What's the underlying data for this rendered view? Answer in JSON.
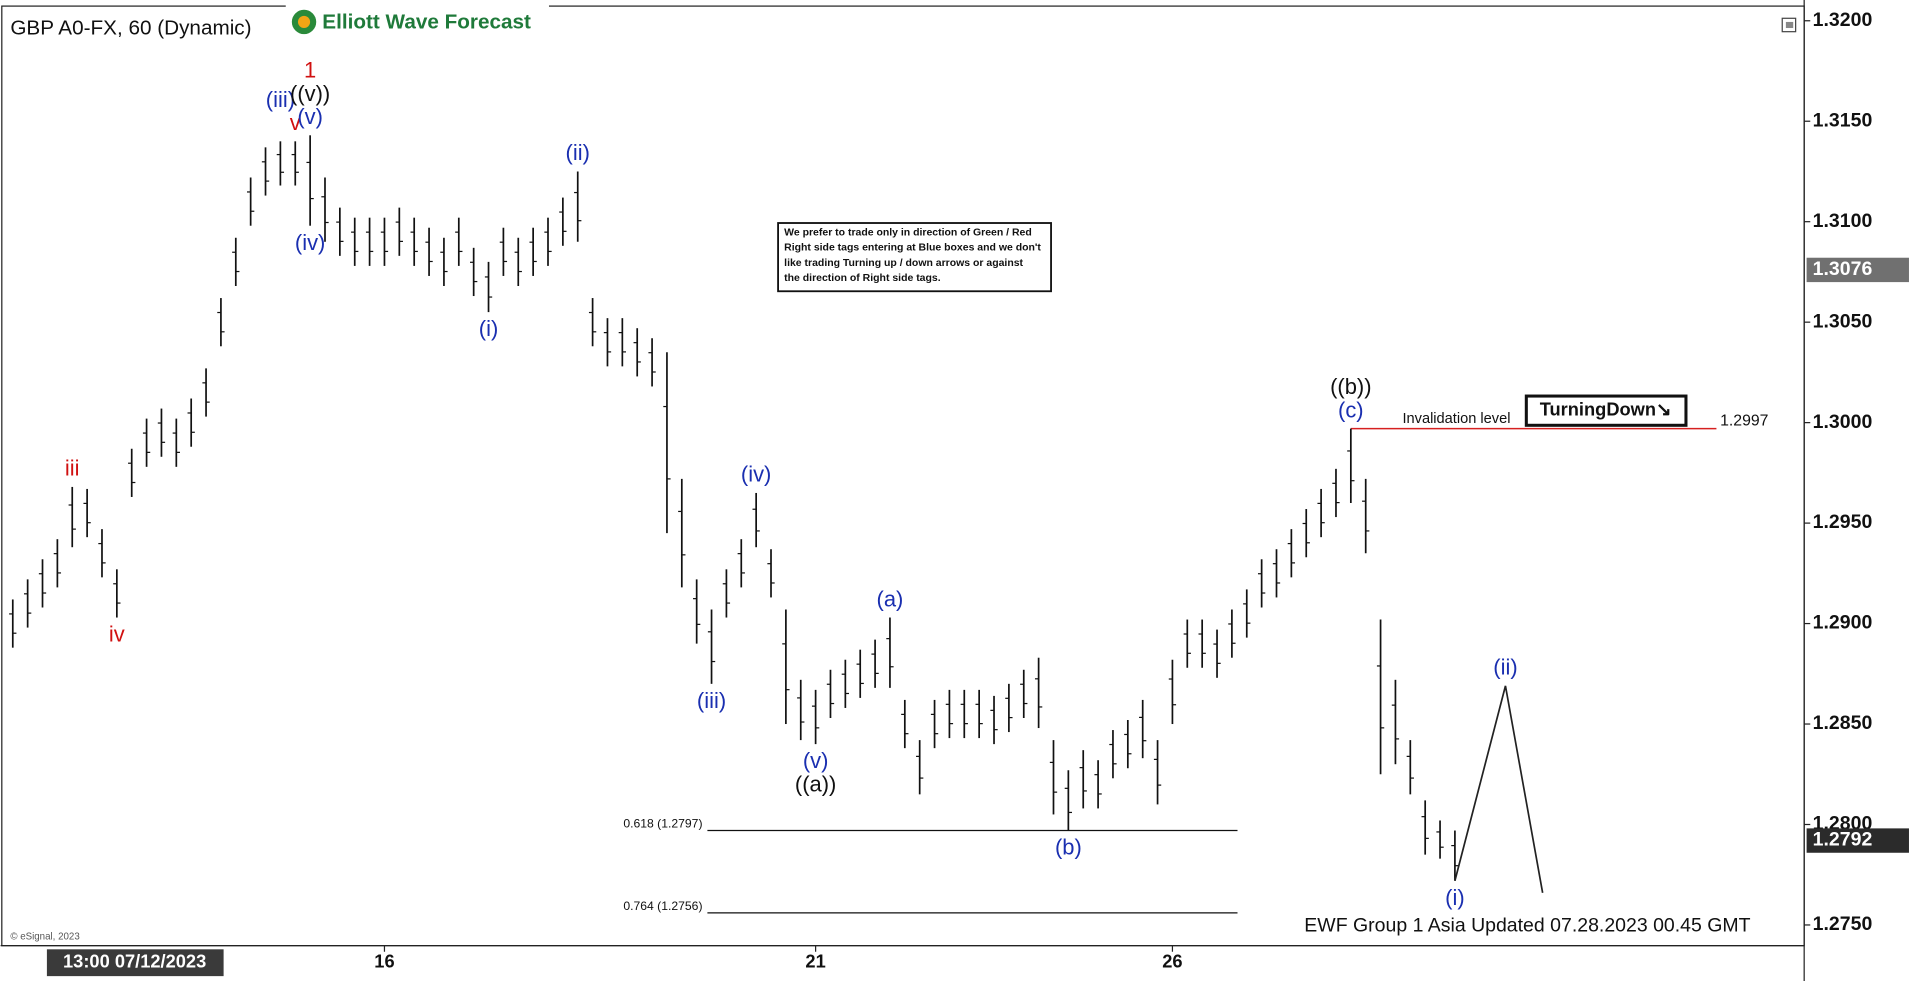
{
  "chart_data": {
    "type": "ohlc",
    "title": "GBP A0-FX, 60 (Dynamic)",
    "logo": "Elliott Wave Forecast",
    "copyright": "© eSignal, 2023",
    "footer": "EWF Group 1 Asia Updated 07.28.2023 00.45 GMT",
    "x_start_label": "13:00 07/12/2023",
    "categories": [
      null,
      null,
      null,
      null,
      null,
      null,
      null,
      null,
      null,
      null,
      null,
      null,
      null,
      null,
      null,
      null,
      null,
      null,
      null,
      null,
      null,
      null,
      null,
      null,
      null,
      "16",
      null,
      null,
      null,
      null,
      null,
      null,
      null,
      null,
      null,
      null,
      null,
      null,
      null,
      null,
      null,
      null,
      null,
      null,
      null,
      null,
      null,
      null,
      null,
      null,
      null,
      null,
      null,
      null,
      "21",
      null,
      null,
      null,
      null,
      null,
      null,
      null,
      null,
      null,
      null,
      null,
      null,
      null,
      null,
      null,
      null,
      null,
      null,
      null,
      null,
      null,
      null,
      null,
      "26",
      null,
      null,
      null,
      null,
      null,
      null,
      null,
      null,
      null,
      null,
      null,
      null,
      null,
      null,
      null,
      null,
      null,
      null,
      null
    ],
    "high": [
      1.2912,
      1.2922,
      1.2932,
      1.2942,
      1.2968,
      1.2967,
      1.2947,
      1.2927,
      1.2987,
      1.3002,
      1.3007,
      1.3002,
      1.3012,
      1.3027,
      1.3062,
      1.3092,
      1.3122,
      1.3137,
      1.314,
      1.314,
      1.3143,
      1.3122,
      1.3107,
      1.3102,
      1.3102,
      1.3102,
      1.3107,
      1.3102,
      1.3097,
      1.3092,
      1.3102,
      1.3087,
      1.308,
      1.3097,
      1.3092,
      1.3097,
      1.3102,
      1.3112,
      1.3125,
      1.3062,
      1.3052,
      1.3052,
      1.3047,
      1.3042,
      1.3035,
      1.2972,
      1.2922,
      1.2907,
      1.2927,
      1.2942,
      1.2965,
      1.2937,
      1.2907,
      1.2872,
      1.2867,
      1.2877,
      1.2882,
      1.2887,
      1.2892,
      1.2903,
      1.2862,
      1.2842,
      1.2862,
      1.2867,
      1.2867,
      1.2867,
      1.2864,
      1.287,
      1.2877,
      1.2883,
      1.2842,
      1.2827,
      1.2837,
      1.2832,
      1.2847,
      1.2852,
      1.2862,
      1.2842,
      1.2882,
      1.2902,
      1.2902,
      1.2897,
      1.2907,
      1.2917,
      1.2932,
      1.2937,
      1.2947,
      1.2957,
      1.2967,
      1.2977,
      1.2997,
      1.2972,
      1.2902,
      1.2872,
      1.2842,
      1.2812,
      1.2802,
      1.2797
    ],
    "low": [
      1.2888,
      1.2898,
      1.2908,
      1.2918,
      1.2938,
      1.2943,
      1.2923,
      1.2903,
      1.2963,
      1.2978,
      1.2983,
      1.2978,
      1.2988,
      1.3003,
      1.3038,
      1.3068,
      1.3098,
      1.3113,
      1.3118,
      1.3118,
      1.3098,
      1.309,
      1.3083,
      1.3078,
      1.3078,
      1.3078,
      1.3083,
      1.3078,
      1.3073,
      1.3068,
      1.3078,
      1.3063,
      1.3055,
      1.3073,
      1.3068,
      1.3073,
      1.3078,
      1.3088,
      1.309,
      1.3038,
      1.3028,
      1.3028,
      1.3023,
      1.3018,
      1.2945,
      1.2918,
      1.289,
      1.287,
      1.2903,
      1.2918,
      1.2938,
      1.2913,
      1.285,
      1.2842,
      1.284,
      1.2853,
      1.2858,
      1.2863,
      1.2868,
      1.2868,
      1.2838,
      1.2815,
      1.2838,
      1.2843,
      1.2843,
      1.2843,
      1.284,
      1.2846,
      1.2853,
      1.2848,
      1.2805,
      1.2797,
      1.2808,
      1.2808,
      1.2823,
      1.2828,
      1.2833,
      1.281,
      1.285,
      1.2878,
      1.2878,
      1.2873,
      1.2883,
      1.2893,
      1.2908,
      1.2913,
      1.2923,
      1.2933,
      1.2943,
      1.2953,
      1.296,
      1.2935,
      1.2825,
      1.283,
      1.2815,
      1.2785,
      1.2783,
      1.2772
    ],
    "color": "#111111",
    "projection": {
      "x": [
        97,
        100.4,
        102.9
      ],
      "values": [
        1.2772,
        1.2869,
        1.2766
      ],
      "color": "#222222"
    },
    "ylim": [
      1.27397,
      1.32073
    ],
    "yticks": [
      {
        "value": 1.275,
        "label": "1.2750"
      },
      {
        "value": 1.28,
        "label": "1.2800"
      },
      {
        "value": 1.285,
        "label": "1.2850"
      },
      {
        "value": 1.29,
        "label": "1.2900"
      },
      {
        "value": 1.295,
        "label": "1.2950"
      },
      {
        "value": 1.3,
        "label": "1.3000"
      },
      {
        "value": 1.305,
        "label": "1.3050"
      },
      {
        "value": 1.31,
        "label": "1.3100"
      },
      {
        "value": 1.315,
        "label": "1.3150"
      },
      {
        "value": 1.32,
        "label": "1.3200"
      }
    ],
    "price_tags": [
      {
        "value": 1.3076,
        "color": "#707070"
      },
      {
        "value": 1.2792,
        "color": "#2b2b2b"
      }
    ],
    "invalidation": {
      "label": "Invalidation level",
      "value": 1.2997,
      "bar": 90,
      "color": "#d62020"
    },
    "fib_levels": [
      {
        "label": "0.618 (1.2797)",
        "value": 1.2797
      },
      {
        "label": "0.764 (1.2756)",
        "value": 1.2756
      }
    ],
    "signal": "TurningDown↘",
    "note": [
      "We prefer to trade only in direction of Green / Red",
      "Right side tags entering at Blue boxes and we don't",
      "like trading Turning up / down arrows or against",
      "the direction of Right side tags."
    ],
    "wave_labels": [
      {
        "text": "iii",
        "bar": 4,
        "side": "above",
        "level": 0,
        "color": "#d01010"
      },
      {
        "text": "iv",
        "bar": 7,
        "side": "below",
        "level": 0,
        "color": "#d01010"
      },
      {
        "text": "(iii)",
        "bar": 18,
        "side": "above",
        "level": 1,
        "color": "#1a2fb0"
      },
      {
        "text": "v",
        "bar": 19,
        "side": "above",
        "level": 0,
        "color": "#d01010"
      },
      {
        "text": "(v)",
        "bar": 20,
        "side": "above",
        "level": 0,
        "color": "#1a2fb0"
      },
      {
        "text": "((v))",
        "bar": 20,
        "side": "above",
        "level": 1,
        "color": "#111111"
      },
      {
        "text": "1",
        "bar": 20,
        "side": "above",
        "level": 2,
        "color": "#d01010"
      },
      {
        "text": "(iv)",
        "bar": 20,
        "side": "below",
        "level": 0,
        "color": "#1a2fb0"
      },
      {
        "text": "(i)",
        "bar": 32,
        "side": "below",
        "level": 0,
        "color": "#1a2fb0"
      },
      {
        "text": "(ii)",
        "bar": 38,
        "side": "above",
        "level": 0,
        "color": "#1a2fb0"
      },
      {
        "text": "(iii)",
        "bar": 47,
        "side": "below",
        "level": 0,
        "color": "#1a2fb0"
      },
      {
        "text": "(iv)",
        "bar": 50,
        "side": "above",
        "level": 0,
        "color": "#1a2fb0"
      },
      {
        "text": "(v)",
        "bar": 54,
        "side": "below",
        "level": 0,
        "color": "#1a2fb0"
      },
      {
        "text": "((a))",
        "bar": 54,
        "side": "below",
        "level": 1,
        "color": "#111111"
      },
      {
        "text": "(a)",
        "bar": 59,
        "side": "above",
        "level": 0,
        "color": "#1a2fb0"
      },
      {
        "text": "(b)",
        "bar": 71,
        "side": "below",
        "level": 0,
        "color": "#1a2fb0"
      },
      {
        "text": "(c)",
        "bar": 90,
        "side": "above",
        "level": 0,
        "color": "#1a2fb0"
      },
      {
        "text": "((b))",
        "bar": 90,
        "side": "above",
        "level": 1,
        "color": "#111111"
      },
      {
        "text": "(i)",
        "bar": 97,
        "side": "below",
        "level": 0,
        "color": "#1a2fb0"
      },
      {
        "text": "(ii)",
        "bar": 100.4,
        "side": "above",
        "level": 0,
        "color": "#1a2fb0"
      }
    ]
  }
}
